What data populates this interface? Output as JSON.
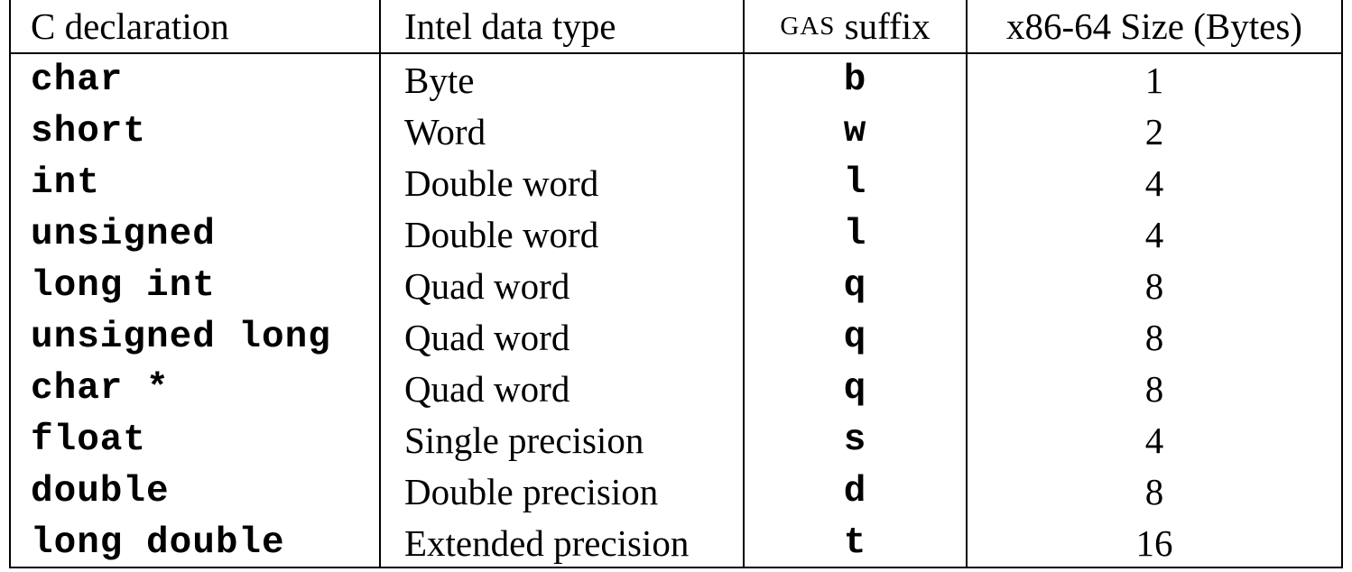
{
  "table": {
    "headers": {
      "c_declaration": "C declaration",
      "intel_data_type": "Intel data type",
      "gas_prefix": "GAS",
      "gas_suffix_word": " suffix",
      "size": "x86-64 Size (Bytes)"
    },
    "rows": [
      {
        "c_decl": "char",
        "intel": "Byte",
        "suffix": "b",
        "size": "1"
      },
      {
        "c_decl": "short",
        "intel": "Word",
        "suffix": "w",
        "size": "2"
      },
      {
        "c_decl": "int",
        "intel": "Double word",
        "suffix": "l",
        "size": "4"
      },
      {
        "c_decl": "unsigned",
        "intel": "Double word",
        "suffix": "l",
        "size": "4"
      },
      {
        "c_decl": "long int",
        "intel": "Quad word",
        "suffix": "q",
        "size": "8"
      },
      {
        "c_decl": "unsigned long",
        "intel": "Quad word",
        "suffix": "q",
        "size": "8"
      },
      {
        "c_decl": "char *",
        "intel": "Quad word",
        "suffix": "q",
        "size": "8"
      },
      {
        "c_decl": "float",
        "intel": "Single precision",
        "suffix": "s",
        "size": "4"
      },
      {
        "c_decl": "double",
        "intel": "Double precision",
        "suffix": "d",
        "size": "8"
      },
      {
        "c_decl": "long double",
        "intel": "Extended precision",
        "suffix": "t",
        "size": "16"
      }
    ]
  }
}
